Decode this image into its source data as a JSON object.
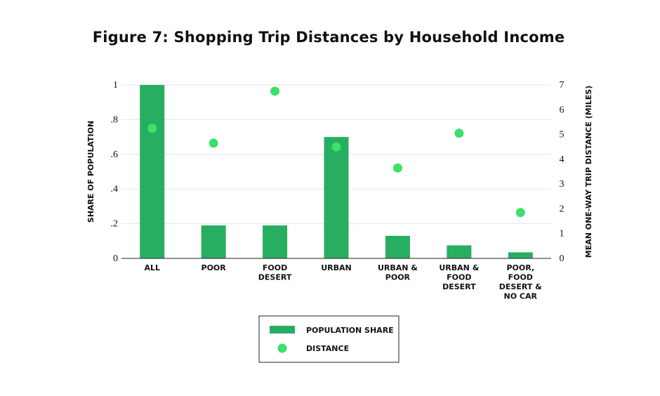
{
  "chart_data": {
    "type": "bar",
    "title": "Figure 7: Shopping Trip Distances by Household Income",
    "categories": [
      [
        "ALL"
      ],
      [
        "POOR"
      ],
      [
        "FOOD",
        "DESERT"
      ],
      [
        "URBAN"
      ],
      [
        "URBAN &",
        "POOR"
      ],
      [
        "URBAN &",
        "FOOD",
        "DESERT"
      ],
      [
        "POOR,",
        "FOOD",
        "DESERT &",
        "NO CAR"
      ]
    ],
    "ylabel_left": "SHARE OF POPULATION",
    "ylabel_right": "MEAN ONE-WAY TRIP DISTANCE (MILES)",
    "y_left_range": [
      0,
      1
    ],
    "y_left_ticks": [
      {
        "value": 0,
        "label": "0"
      },
      {
        "value": 0.2,
        "label": ".2"
      },
      {
        "value": 0.4,
        "label": ".4"
      },
      {
        "value": 0.6,
        "label": ".6"
      },
      {
        "value": 0.8,
        "label": ".8"
      },
      {
        "value": 1.0,
        "label": "1"
      }
    ],
    "y_right_range": [
      0,
      7
    ],
    "y_right_ticks": [
      {
        "value": 0,
        "label": "0"
      },
      {
        "value": 1,
        "label": "1"
      },
      {
        "value": 2,
        "label": "2"
      },
      {
        "value": 3,
        "label": "3"
      },
      {
        "value": 4,
        "label": "4"
      },
      {
        "value": 5,
        "label": "5"
      },
      {
        "value": 6,
        "label": "6"
      },
      {
        "value": 7,
        "label": "7"
      }
    ],
    "grid": true,
    "legend_position": "bottom-center",
    "series": [
      {
        "name": "POPULATION SHARE",
        "kind": "bar",
        "axis": "left",
        "color": "#27ae60",
        "values": [
          1.0,
          0.19,
          0.19,
          0.7,
          0.13,
          0.075,
          0.035
        ]
      },
      {
        "name": "DISTANCE",
        "kind": "scatter",
        "axis": "right",
        "color": "#3de069",
        "values": [
          5.25,
          4.65,
          6.75,
          4.5,
          3.65,
          5.05,
          1.85
        ]
      }
    ]
  }
}
